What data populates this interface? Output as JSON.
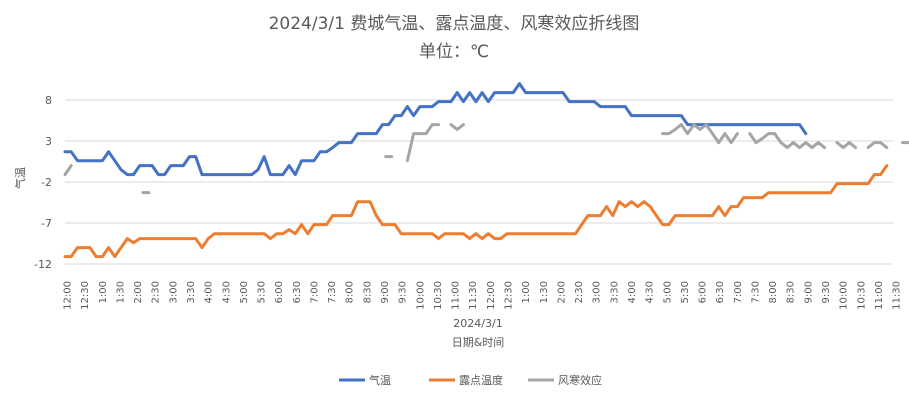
{
  "chart_data": {
    "type": "line",
    "title": "2024/3/1 费城气温、露点温度、风寒效应折线图",
    "subtitle": "单位：℃",
    "xlabel": "日期&时间",
    "x_group_label": "2024/3/1",
    "ylabel": "气温",
    "ylim": [
      -12,
      11
    ],
    "y_ticks": [
      8,
      3,
      -2,
      -7,
      -12
    ],
    "x_tick_labels": [
      "12:00",
      "12:30",
      "1:00",
      "1:30",
      "2:00",
      "2:30",
      "3:00",
      "3:30",
      "4:00",
      "4:30",
      "5:00",
      "5:30",
      "6:00",
      "6:30",
      "7:00",
      "7:30",
      "8:00",
      "8:30",
      "9:00",
      "9:30",
      "10:00",
      "10:30",
      "11:00",
      "11:30",
      "12:00",
      "12:30",
      "1:00",
      "1:30",
      "2:00",
      "2:30",
      "3:00",
      "3:30",
      "4:00",
      "4:30",
      "5:00",
      "5:30",
      "6:00",
      "6:30",
      "7:00",
      "7:30",
      "8:00",
      "8:30",
      "9:00",
      "9:30",
      "10:00",
      "10:30",
      "11:00",
      "11:30"
    ],
    "x_index_range": [
      0,
      95
    ],
    "grid": "horizontal",
    "legend_position": "bottom",
    "series": [
      {
        "name": "气温",
        "color": "#4472C4",
        "points": [
          [
            0,
            1.7
          ],
          [
            1,
            1.7
          ],
          [
            2,
            0.6
          ],
          [
            6,
            0.6
          ],
          [
            7,
            1.7
          ],
          [
            8,
            0.6
          ],
          [
            9,
            -0.5
          ],
          [
            10,
            -1.1
          ],
          [
            11,
            -1.1
          ],
          [
            12,
            0
          ],
          [
            14,
            0
          ],
          [
            15,
            -1.1
          ],
          [
            16,
            -1.1
          ],
          [
            17,
            0
          ],
          [
            19,
            0
          ],
          [
            20,
            1.1
          ],
          [
            21,
            1.1
          ],
          [
            22,
            -1.1
          ],
          [
            30,
            -1.1
          ],
          [
            31,
            -0.5
          ],
          [
            32,
            1.1
          ],
          [
            33,
            -1.1
          ],
          [
            35,
            -1.1
          ],
          [
            36,
            0
          ],
          [
            37,
            -1.1
          ],
          [
            38,
            0.6
          ],
          [
            40,
            0.6
          ],
          [
            41,
            1.7
          ],
          [
            42,
            1.7
          ],
          [
            43,
            2.2
          ],
          [
            44,
            2.8
          ],
          [
            46,
            2.8
          ],
          [
            47,
            3.9
          ],
          [
            50,
            3.9
          ],
          [
            51,
            5
          ],
          [
            52,
            5
          ],
          [
            53,
            6.1
          ],
          [
            54,
            6.1
          ],
          [
            55,
            7.2
          ],
          [
            56,
            6.1
          ],
          [
            57,
            7.2
          ],
          [
            59,
            7.2
          ],
          [
            60,
            7.8
          ],
          [
            62,
            7.8
          ],
          [
            63,
            8.9
          ],
          [
            64,
            7.8
          ],
          [
            65,
            8.9
          ],
          [
            66,
            7.8
          ],
          [
            67,
            8.9
          ],
          [
            68,
            7.8
          ],
          [
            69,
            8.9
          ],
          [
            70,
            8.9
          ],
          [
            72,
            8.9
          ],
          [
            73,
            10
          ],
          [
            74,
            8.9
          ],
          [
            80,
            8.9
          ],
          [
            81,
            7.8
          ],
          [
            85,
            7.8
          ],
          [
            86,
            7.2
          ],
          [
            90,
            7.2
          ],
          [
            91,
            6.1
          ],
          [
            99,
            6.1
          ],
          [
            100,
            5
          ],
          [
            118,
            5
          ],
          [
            119,
            3.9
          ]
        ]
      },
      {
        "name": "露点温度",
        "color": "#ED7D31",
        "points": [
          [
            0,
            -11.1
          ],
          [
            1,
            -11.1
          ],
          [
            2,
            -10
          ],
          [
            4,
            -10
          ],
          [
            5,
            -11.1
          ],
          [
            6,
            -11.1
          ],
          [
            7,
            -10
          ],
          [
            8,
            -11.1
          ],
          [
            9,
            -10
          ],
          [
            10,
            -8.9
          ],
          [
            11,
            -9.4
          ],
          [
            12,
            -8.9
          ],
          [
            21,
            -8.9
          ],
          [
            22,
            -10
          ],
          [
            23,
            -8.9
          ],
          [
            24,
            -8.3
          ],
          [
            32,
            -8.3
          ],
          [
            33,
            -8.9
          ],
          [
            34,
            -8.3
          ],
          [
            35,
            -8.3
          ],
          [
            36,
            -7.8
          ],
          [
            37,
            -8.3
          ],
          [
            38,
            -7.2
          ],
          [
            39,
            -8.3
          ],
          [
            40,
            -7.2
          ],
          [
            42,
            -7.2
          ],
          [
            43,
            -6.1
          ],
          [
            44,
            -6.1
          ],
          [
            45,
            -6.1
          ],
          [
            46,
            -6.1
          ],
          [
            47,
            -4.4
          ],
          [
            49,
            -4.4
          ],
          [
            50,
            -6.1
          ],
          [
            51,
            -7.2
          ],
          [
            53,
            -7.2
          ],
          [
            54,
            -8.3
          ],
          [
            59,
            -8.3
          ],
          [
            60,
            -8.9
          ],
          [
            61,
            -8.3
          ],
          [
            64,
            -8.3
          ],
          [
            65,
            -8.9
          ],
          [
            66,
            -8.3
          ],
          [
            67,
            -8.9
          ],
          [
            68,
            -8.3
          ],
          [
            69,
            -8.9
          ],
          [
            70,
            -8.9
          ],
          [
            71,
            -8.3
          ],
          [
            82,
            -8.3
          ],
          [
            83,
            -7.2
          ],
          [
            84,
            -6.1
          ],
          [
            86,
            -6.1
          ],
          [
            87,
            -5
          ],
          [
            88,
            -6.1
          ],
          [
            89,
            -4.4
          ],
          [
            90,
            -5
          ],
          [
            91,
            -4.4
          ],
          [
            92,
            -5
          ],
          [
            93,
            -4.4
          ],
          [
            94,
            -5
          ],
          [
            95,
            -6.1
          ],
          [
            96,
            -7.2
          ],
          [
            97,
            -7.2
          ],
          [
            98,
            -6.1
          ],
          [
            104,
            -6.1
          ],
          [
            105,
            -5
          ],
          [
            106,
            -6.1
          ],
          [
            107,
            -5
          ],
          [
            108,
            -5
          ],
          [
            109,
            -3.9
          ],
          [
            112,
            -3.9
          ],
          [
            113,
            -3.3
          ],
          [
            123,
            -3.3
          ],
          [
            124,
            -2.2
          ],
          [
            129,
            -2.2
          ],
          [
            130,
            -1.1
          ],
          [
            131,
            -1.1
          ],
          [
            132,
            0
          ]
        ]
      },
      {
        "name": "风寒效应",
        "color": "#A5A5A5",
        "segments": [
          [
            [
              0,
              -1.1
            ],
            [
              1,
              0
            ]
          ],
          [
            [
              13,
              -3.3
            ]
          ],
          [
            [
              52,
              1.1
            ]
          ],
          [
            [
              55,
              0.6
            ],
            [
              56,
              3.9
            ],
            [
              57,
              3.9
            ],
            [
              58,
              3.9
            ],
            [
              59,
              5
            ],
            [
              60,
              5
            ]
          ],
          [
            [
              62,
              5
            ],
            [
              63,
              4.4
            ],
            [
              64,
              5
            ]
          ],
          [
            [
              96,
              3.9
            ],
            [
              97,
              3.9
            ],
            [
              98,
              4.4
            ],
            [
              99,
              5
            ],
            [
              100,
              3.9
            ],
            [
              101,
              5
            ],
            [
              102,
              4.4
            ],
            [
              103,
              5
            ],
            [
              104,
              3.9
            ],
            [
              105,
              2.8
            ],
            [
              106,
              3.9
            ],
            [
              107,
              2.8
            ],
            [
              108,
              3.9
            ]
          ],
          [
            [
              110,
              3.9
            ],
            [
              111,
              2.8
            ],
            [
              112,
              3.3
            ],
            [
              113,
              3.9
            ],
            [
              114,
              3.9
            ],
            [
              115,
              2.8
            ],
            [
              116,
              2.2
            ],
            [
              117,
              2.8
            ],
            [
              118,
              2.2
            ],
            [
              119,
              2.8
            ],
            [
              120,
              2.2
            ],
            [
              121,
              2.8
            ],
            [
              122,
              2.2
            ]
          ],
          [
            [
              124,
              2.8
            ],
            [
              125,
              2.2
            ],
            [
              126,
              2.8
            ],
            [
              127,
              2.2
            ]
          ],
          [
            [
              129,
              2.2
            ],
            [
              130,
              2.8
            ],
            [
              131,
              2.8
            ],
            [
              132,
              2.2
            ]
          ],
          [
            [
              135,
              2.8
            ]
          ]
        ]
      }
    ]
  }
}
